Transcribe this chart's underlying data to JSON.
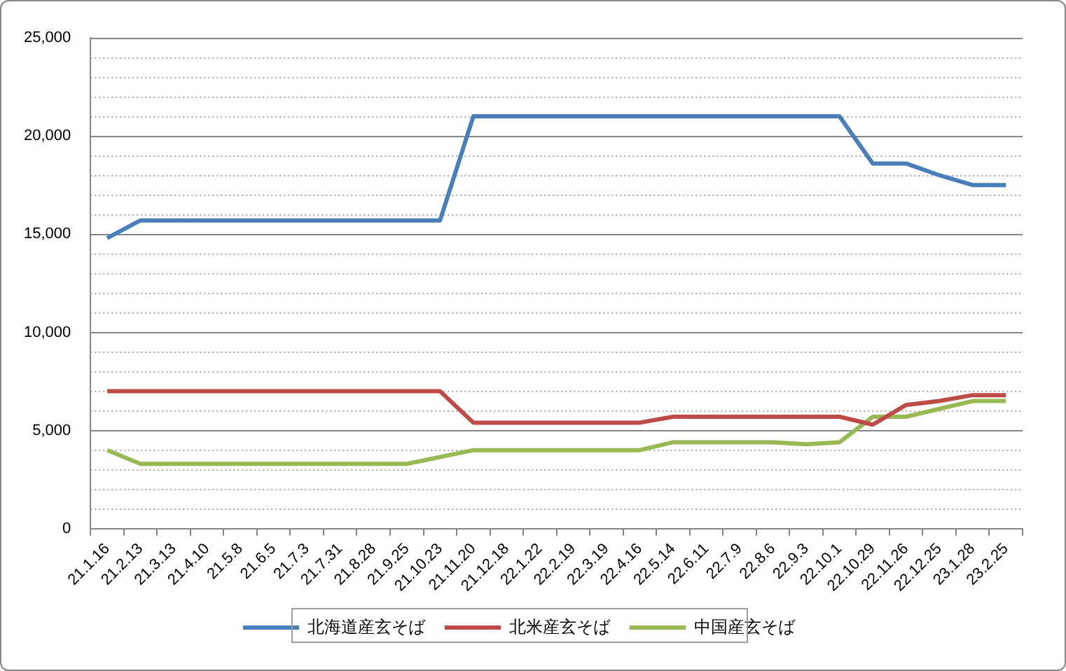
{
  "chart_data": {
    "type": "line",
    "categories": [
      "21.1.16",
      "21.2.13",
      "21.3.13",
      "21.4.10",
      "21.5.8",
      "21.6.5",
      "21.7.3",
      "21.7.31",
      "21.8.28",
      "21.9.25",
      "21.10.23",
      "21.11.20",
      "21.12.18",
      "22.1.22",
      "22.2.19",
      "22.3.19",
      "22.4.16",
      "22.5.14",
      "22.6.11",
      "22.7.9",
      "22.8.6",
      "22.9.3",
      "22.10.1",
      "22.10.29",
      "22.11.26",
      "22.12.25",
      "23.1.28",
      "23.2.25"
    ],
    "series": [
      {
        "name": "北海道産玄そば",
        "color": "#4a7ebb",
        "values": [
          14800,
          15700,
          15700,
          15700,
          15700,
          15700,
          15700,
          15700,
          15700,
          15700,
          15700,
          21000,
          21000,
          21000,
          21000,
          21000,
          21000,
          21000,
          21000,
          21000,
          21000,
          21000,
          21000,
          18600,
          18600,
          18000,
          17500,
          17500
        ]
      },
      {
        "name": "北米産玄そば",
        "color": "#be4b48",
        "values": [
          7000,
          7000,
          7000,
          7000,
          7000,
          7000,
          7000,
          7000,
          7000,
          7000,
          7000,
          5400,
          5400,
          5400,
          5400,
          5400,
          5400,
          5700,
          5700,
          5700,
          5700,
          5700,
          5700,
          5300,
          6300,
          6500,
          6800,
          6800
        ]
      },
      {
        "name": "中国産玄そば",
        "color": "#98b954",
        "values": [
          4000,
          3300,
          3300,
          3300,
          3300,
          3300,
          3300,
          3300,
          3300,
          3300,
          3650,
          4000,
          4000,
          4000,
          4000,
          4000,
          4000,
          4400,
          4400,
          4400,
          4400,
          4300,
          4400,
          5700,
          5700,
          6100,
          6500,
          6500
        ]
      }
    ],
    "ylim": [
      0,
      25000
    ],
    "yticks": [
      0,
      {
        "value": 1000,
        "label": null
      },
      {
        "value": 2000,
        "label": null
      },
      {
        "value": 3000,
        "label": null
      },
      {
        "value": 4000,
        "label": null
      },
      {
        "value": 5000,
        "label": "5,000"
      },
      {
        "value": 6000,
        "label": null
      },
      {
        "value": 7000,
        "label": null
      },
      {
        "value": 8000,
        "label": null
      },
      {
        "value": 9000,
        "label": null
      },
      {
        "value": 10000,
        "label": "10,000"
      },
      {
        "value": 11000,
        "label": null
      },
      {
        "value": 12000,
        "label": null
      },
      {
        "value": 13000,
        "label": null
      },
      {
        "value": 14000,
        "label": null
      },
      {
        "value": 15000,
        "label": "15,000"
      },
      {
        "value": 16000,
        "label": null
      },
      {
        "value": 17000,
        "label": null
      },
      {
        "value": 18000,
        "label": null
      },
      {
        "value": 19000,
        "label": null
      },
      {
        "value": 20000,
        "label": "20,000"
      },
      {
        "value": 21000,
        "label": null
      },
      {
        "value": 22000,
        "label": null
      },
      {
        "value": 23000,
        "label": null
      },
      {
        "value": 24000,
        "label": null
      },
      {
        "value": 25000,
        "label": "25,000"
      }
    ],
    "grid": "y",
    "legend": "bottom",
    "marker": "none",
    "line_style": "solid"
  }
}
